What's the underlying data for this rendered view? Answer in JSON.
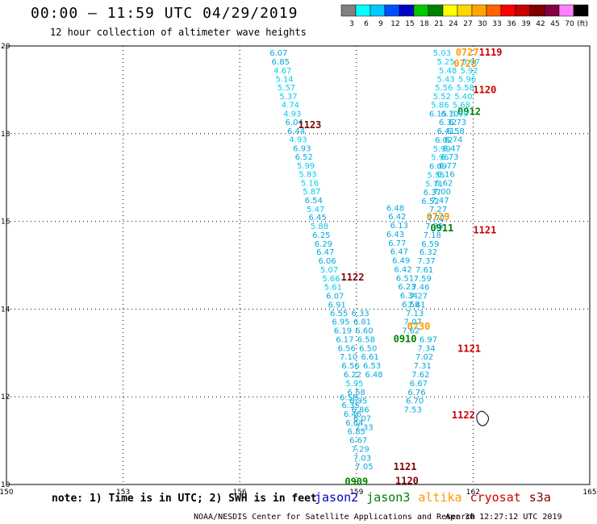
{
  "header": {
    "title": "00:00 – 11:59 UTC 04/29/2019",
    "subtitle": "12 hour collection of altimeter wave heights"
  },
  "colorbar": {
    "colors": [
      "#808080",
      "#00ffff",
      "#00c8ff",
      "#0050ff",
      "#0000c8",
      "#00c800",
      "#008000",
      "#ffff00",
      "#ffd700",
      "#ffa500",
      "#ff6400",
      "#ff0000",
      "#c80000",
      "#800000",
      "#800040",
      "#ff80ff",
      "#000000"
    ],
    "labels": [
      "3",
      "6",
      "9",
      "12",
      "15",
      "18",
      "21",
      "24",
      "27",
      "30",
      "33",
      "36",
      "39",
      "42",
      "45",
      "70",
      "(ft)"
    ]
  },
  "footer": {
    "note": "note: 1) Time is in UTC; 2) SWH is in feet",
    "missions": [
      {
        "name": "jason2",
        "color": "#0000cc"
      },
      {
        "name": "jason3",
        "color": "#008000"
      },
      {
        "name": "altika",
        "color": "#ff9900"
      },
      {
        "name": "cryosat",
        "color": "#cc0000"
      },
      {
        "name": "s3a",
        "color": "#800000"
      }
    ],
    "credit": "NOAA/NESDIS Center for Satellite Applications and Research",
    "stamp": "Apr 30 12:27:12 UTC 2019"
  },
  "chart_data": {
    "type": "scatter",
    "title": "00:00 – 11:59 UTC 04/29/2019",
    "subtitle": "12 hour collection of altimeter wave heights",
    "xlim": [
      150,
      165
    ],
    "ylim": [
      10,
      20
    ],
    "xticks": [
      150,
      153,
      156,
      159,
      162,
      165
    ],
    "yticks": [
      10,
      12,
      14,
      16,
      18,
      20
    ],
    "grid": true,
    "tracks": [
      {
        "time": "1123",
        "mission": "s3a",
        "color": "#800000",
        "time_label_at": [
          157.8,
          18.2
        ],
        "points": [
          [
            157.0,
            19.83,
            "6.07"
          ],
          [
            157.05,
            19.63,
            "6.85"
          ],
          [
            157.1,
            19.43,
            "4.67"
          ],
          [
            157.15,
            19.24,
            "5.14"
          ],
          [
            157.2,
            19.04,
            "5.57"
          ],
          [
            157.25,
            18.84,
            "5.37"
          ],
          [
            157.3,
            18.65,
            "4.74"
          ],
          [
            157.35,
            18.45,
            "4.93"
          ],
          [
            157.4,
            18.25,
            "6.04"
          ],
          [
            157.45,
            18.05,
            "6.44"
          ],
          [
            157.5,
            17.86,
            "4.93"
          ],
          [
            157.6,
            17.66,
            "6.93"
          ],
          [
            157.65,
            17.46,
            "6.52"
          ],
          [
            157.7,
            17.26,
            "5.99"
          ],
          [
            157.75,
            17.07,
            "5.83"
          ],
          [
            157.8,
            16.87,
            "5.16"
          ],
          [
            157.85,
            16.67,
            "5.87"
          ],
          [
            157.9,
            16.47,
            "6.54"
          ],
          [
            157.95,
            16.27,
            "5.47"
          ],
          [
            158.0,
            16.08,
            "6.45"
          ],
          [
            158.05,
            15.88,
            "5.88"
          ],
          [
            158.1,
            15.68,
            "6.25"
          ],
          [
            158.15,
            15.48,
            "6.29"
          ],
          [
            158.2,
            15.29,
            "6.47"
          ],
          [
            158.25,
            15.09,
            "6.06"
          ],
          [
            158.3,
            14.89,
            "5.07"
          ]
        ]
      },
      {
        "time": "1122",
        "mission": "s3a",
        "color": "#800000",
        "time_label_at": [
          158.9,
          14.72
        ],
        "points": [
          [
            158.35,
            14.69,
            "5.66"
          ],
          [
            158.4,
            14.49,
            "5.61"
          ],
          [
            158.45,
            14.29,
            "6.07"
          ],
          [
            158.5,
            14.09,
            "6.91"
          ],
          [
            158.55,
            13.9,
            "6.55"
          ],
          [
            158.6,
            13.7,
            "6.95"
          ],
          [
            158.65,
            13.5,
            "6.19"
          ],
          [
            158.7,
            13.3,
            "6.17"
          ],
          [
            158.75,
            13.1,
            "6.56"
          ],
          [
            158.8,
            12.9,
            "7.10"
          ],
          [
            158.85,
            12.7,
            "6.56"
          ],
          [
            158.9,
            12.5,
            "6.22"
          ],
          [
            158.95,
            12.3,
            "5.95"
          ],
          [
            159.0,
            12.1,
            "6.58"
          ],
          [
            159.05,
            11.9,
            "6.95"
          ],
          [
            159.1,
            11.7,
            "6.86"
          ],
          [
            159.15,
            11.5,
            "6.07"
          ],
          [
            159.2,
            11.3,
            "7.33"
          ]
        ]
      },
      {
        "time": "1121",
        "mission": "s3a",
        "color": "#800000",
        "time_label_at": [
          160.25,
          10.4
        ],
        "points": [
          [
            158.8,
            11.98,
            "6.58"
          ],
          [
            158.85,
            11.8,
            "6.35"
          ],
          [
            158.9,
            11.6,
            "6.46"
          ],
          [
            158.95,
            11.4,
            "6.64"
          ],
          [
            159.0,
            11.2,
            "6.85"
          ],
          [
            159.05,
            11.0,
            "6.67"
          ],
          [
            159.1,
            10.8,
            "7.29"
          ],
          [
            159.15,
            10.6,
            "7.03"
          ],
          [
            159.2,
            10.4,
            "7.05"
          ]
        ]
      },
      {
        "time": "1120",
        "mission": "s3a",
        "color": "#800000",
        "time_label_at": [
          160.3,
          10.08
        ],
        "points": []
      },
      {
        "time": "0910",
        "mission": "jason3",
        "color": "#008000",
        "time_label_at": [
          160.25,
          13.32
        ],
        "points": [
          [
            159.1,
            13.9,
            "6.33"
          ],
          [
            159.15,
            13.7,
            "6.81"
          ],
          [
            159.2,
            13.5,
            "6.60"
          ],
          [
            159.25,
            13.3,
            "6.58"
          ],
          [
            159.3,
            13.1,
            "6.50"
          ],
          [
            159.35,
            12.9,
            "6.61"
          ],
          [
            159.4,
            12.7,
            "6.53"
          ],
          [
            159.45,
            12.5,
            "6.48"
          ]
        ]
      },
      {
        "time": "0911",
        "mission": "jason3",
        "color": "#008000",
        "time_label_at": [
          161.2,
          15.85
        ],
        "points": [
          [
            160.0,
            16.3,
            "6.48"
          ],
          [
            160.05,
            16.1,
            "6.42"
          ],
          [
            160.1,
            15.9,
            "6.13"
          ],
          [
            160.0,
            15.7,
            "6.43"
          ],
          [
            160.05,
            15.5,
            "6.77"
          ],
          [
            160.1,
            15.3,
            "6.47"
          ],
          [
            160.15,
            15.1,
            "6.49"
          ],
          [
            160.2,
            14.9,
            "6.42"
          ],
          [
            160.25,
            14.7,
            "6.51"
          ],
          [
            160.3,
            14.5,
            "6.23"
          ],
          [
            160.35,
            14.3,
            "6.34"
          ],
          [
            160.4,
            14.1,
            "6.58"
          ]
        ]
      },
      {
        "time": "0912",
        "mission": "jason3",
        "color": "#008000",
        "time_label_at": [
          161.9,
          18.5
        ],
        "points": [
          [
            161.4,
            18.45,
            "6.10"
          ],
          [
            161.35,
            18.25,
            "6.32"
          ],
          [
            161.3,
            18.05,
            "6.41"
          ],
          [
            161.25,
            17.85,
            "6.02"
          ],
          [
            161.2,
            17.65,
            "5.99"
          ],
          [
            161.15,
            17.45,
            "5.96"
          ],
          [
            161.1,
            17.25,
            "6.09"
          ],
          [
            161.05,
            17.05,
            "5.55"
          ],
          [
            161.0,
            16.85,
            "5.71"
          ],
          [
            160.95,
            16.65,
            "6.37"
          ],
          [
            160.9,
            16.45,
            "6.52"
          ]
        ]
      },
      {
        "time": "0909",
        "mission": "jason3",
        "color": "#008000",
        "time_label_at": [
          159.0,
          10.06
        ],
        "points": []
      },
      {
        "time": "0727",
        "mission": "altika",
        "color": "#ff9900",
        "time_label_at": [
          161.85,
          19.85
        ],
        "points": [
          [
            161.2,
            19.83,
            "5.03"
          ],
          [
            161.3,
            19.63,
            "5.25"
          ],
          [
            161.35,
            19.43,
            "5.48"
          ],
          [
            161.3,
            19.24,
            "5.43"
          ],
          [
            161.25,
            19.04,
            "5.56"
          ],
          [
            161.2,
            18.84,
            "5.52"
          ],
          [
            161.15,
            18.65,
            "5.86"
          ],
          [
            161.1,
            18.45,
            "6.15"
          ]
        ]
      },
      {
        "time": "0728",
        "mission": "altika",
        "color": "#ff9900",
        "time_label_at": [
          161.8,
          19.6
        ],
        "points": []
      },
      {
        "time": "0729",
        "mission": "altika",
        "color": "#ff9900",
        "time_label_at": [
          161.1,
          16.1
        ],
        "points": []
      },
      {
        "time": "0730",
        "mission": "altika",
        "color": "#ff9900",
        "time_label_at": [
          160.6,
          13.6
        ],
        "points": []
      },
      {
        "time": "1119",
        "mission": "cryosat",
        "color": "#cc0000",
        "time_label_at": [
          162.45,
          19.85
        ],
        "points": [
          [
            161.95,
            19.63,
            "5.97"
          ],
          [
            161.9,
            19.43,
            "5.92"
          ],
          [
            161.85,
            19.24,
            "5.96"
          ],
          [
            161.8,
            19.04,
            "5.58"
          ],
          [
            161.75,
            18.84,
            "5.40"
          ],
          [
            161.7,
            18.65,
            "5.68"
          ],
          [
            161.65,
            18.45,
            "5.99"
          ],
          [
            161.6,
            18.25,
            "6.73"
          ],
          [
            161.55,
            18.05,
            "6.58"
          ],
          [
            161.5,
            17.86,
            "6.74"
          ],
          [
            161.45,
            17.66,
            "6.47"
          ],
          [
            161.4,
            17.46,
            "6.73"
          ],
          [
            161.35,
            17.26,
            "6.77"
          ],
          [
            161.3,
            17.07,
            "6.16"
          ],
          [
            161.25,
            16.87,
            "6.62"
          ],
          [
            161.2,
            16.67,
            "7.00"
          ],
          [
            161.15,
            16.47,
            "7.47"
          ],
          [
            161.1,
            16.27,
            "7.27"
          ],
          [
            161.05,
            16.07,
            "7.72"
          ],
          [
            161.0,
            15.88,
            "7.39"
          ]
        ]
      },
      {
        "time": "1120",
        "mission": "cryosat",
        "color": "#cc0000",
        "time_label_at": [
          162.3,
          19.0
        ],
        "points": []
      },
      {
        "time": "1121",
        "mission": "cryosat",
        "color": "#cc0000",
        "time_label_at": [
          162.3,
          15.8
        ],
        "points": [
          [
            160.95,
            15.68,
            "7.18"
          ],
          [
            160.9,
            15.48,
            "6.59"
          ],
          [
            160.85,
            15.29,
            "6.32"
          ],
          [
            160.8,
            15.09,
            "7.37"
          ],
          [
            160.75,
            14.89,
            "7.61"
          ],
          [
            160.7,
            14.69,
            "7.59"
          ],
          [
            160.65,
            14.49,
            "7.46"
          ],
          [
            160.6,
            14.29,
            "7.27"
          ],
          [
            160.55,
            14.09,
            "7.41"
          ],
          [
            160.5,
            13.9,
            "7.13"
          ],
          [
            160.45,
            13.7,
            "7.07"
          ],
          [
            160.4,
            13.5,
            "7.62"
          ]
        ]
      },
      {
        "time": "1121",
        "mission": "cryosat",
        "color": "#cc0000",
        "time_label_at": [
          161.9,
          13.1
        ],
        "points": []
      },
      {
        "time": "1122",
        "mission": "cryosat",
        "color": "#cc0000",
        "time_label_at": [
          161.75,
          11.58
        ],
        "points": [
          [
            160.85,
            13.3,
            "6.97"
          ],
          [
            160.8,
            13.1,
            "7.34"
          ],
          [
            160.75,
            12.9,
            "7.02"
          ],
          [
            160.7,
            12.7,
            "7.31"
          ],
          [
            160.65,
            12.5,
            "7.62"
          ],
          [
            160.6,
            12.3,
            "6.67"
          ],
          [
            160.55,
            12.1,
            "6.76"
          ],
          [
            160.5,
            11.9,
            "6.70"
          ],
          [
            160.45,
            11.7,
            "7.53"
          ]
        ]
      }
    ]
  }
}
